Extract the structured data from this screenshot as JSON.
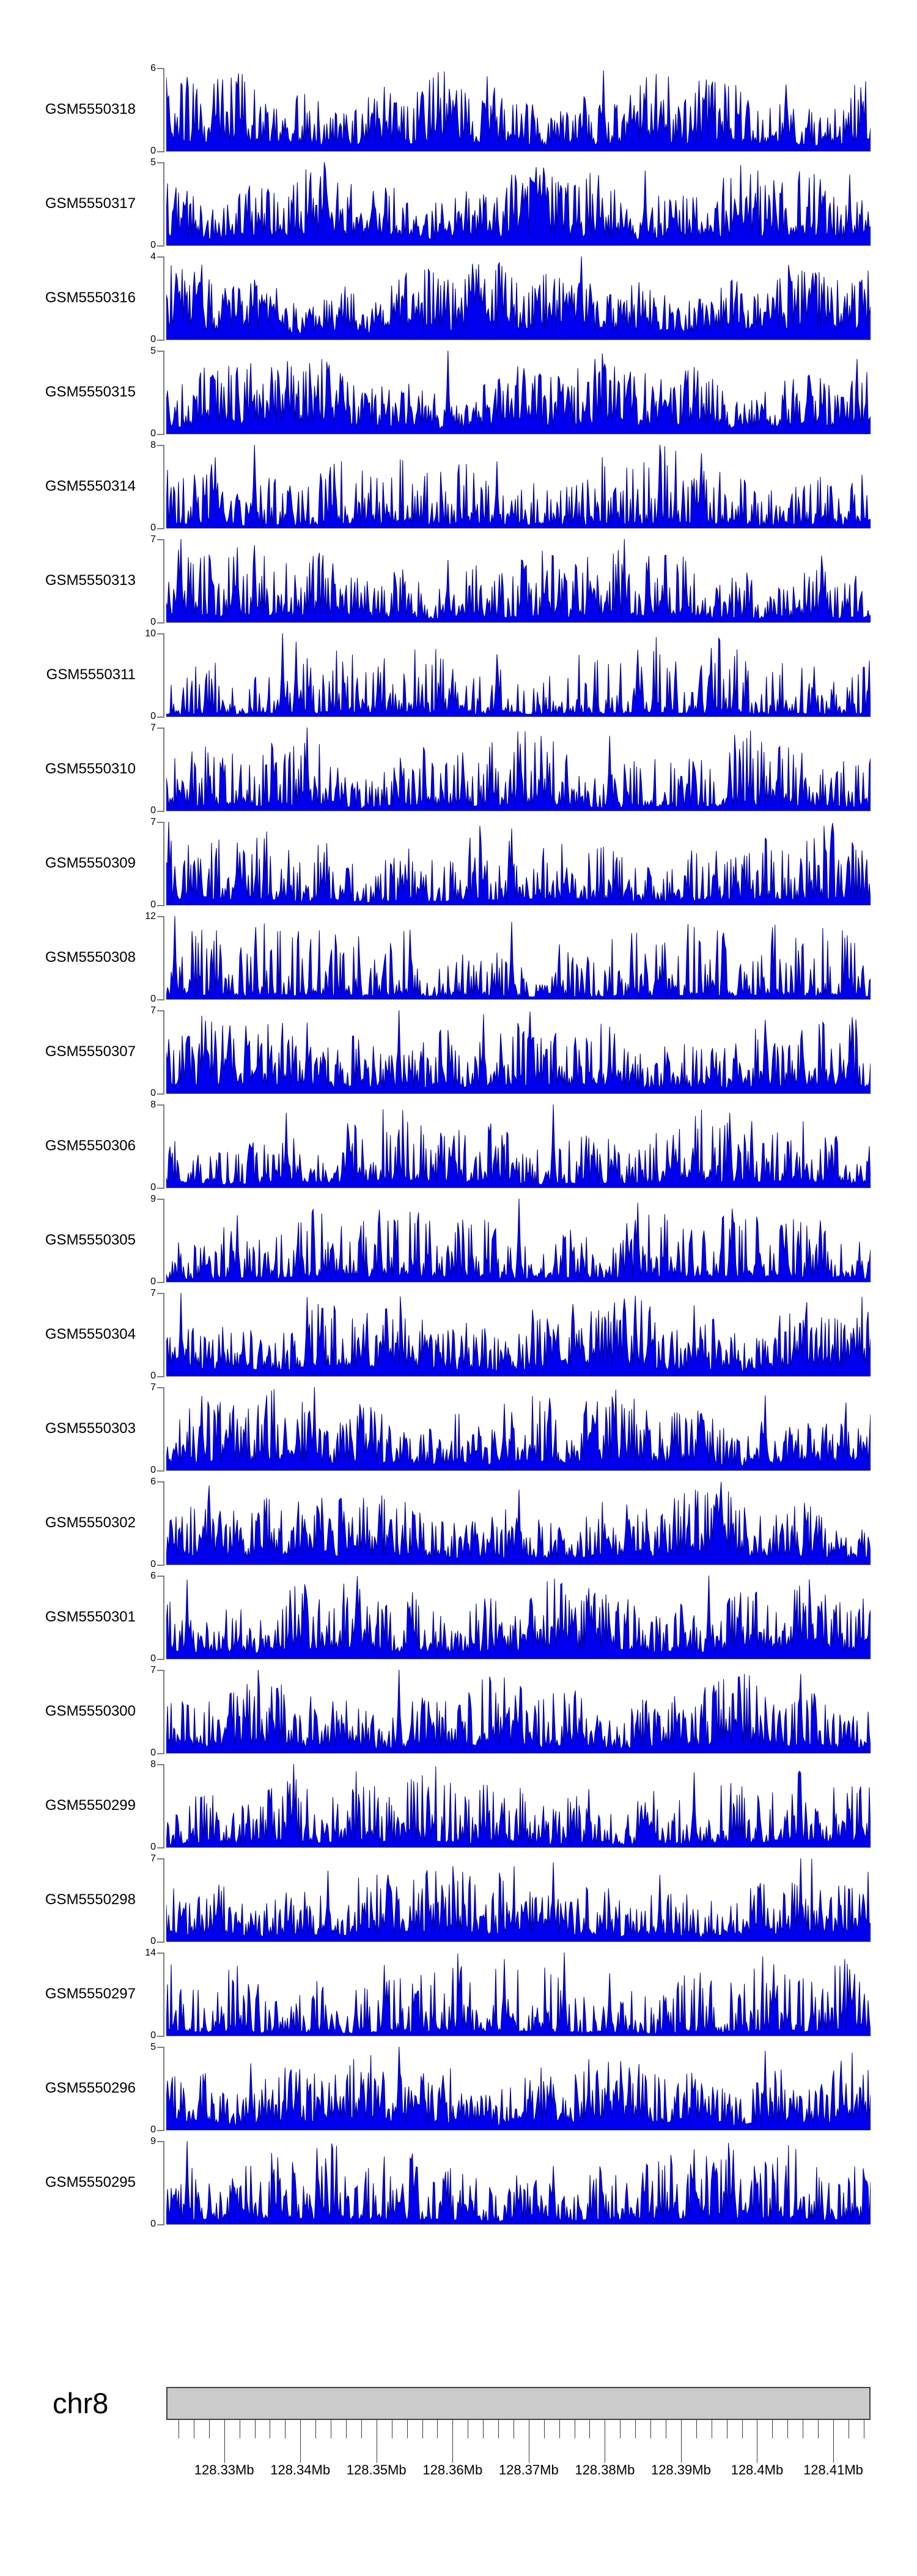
{
  "ruler": {
    "chromosome_label": "chr8"
  },
  "colors": {
    "signal_fill": "#0000EE",
    "signal_edge": "#000080",
    "axis_line": "#7E7E7E",
    "tick_line": "#3C3C3C",
    "ideogram_fill": "#CBCBCB",
    "ideogram_border": "#404040",
    "text": "#000000",
    "background": "#FFFFFF"
  },
  "chart_data": {
    "type": "area",
    "chart_kind": "genome-browser-coverage-tracks",
    "title": "",
    "legend": "none",
    "grid": false,
    "region": {
      "chromosome": "chr8",
      "start_mb": 128.3224,
      "end_mb": 128.4149,
      "unit": "Mb"
    },
    "x_axis": {
      "unit": "Mb",
      "major_ticks": [
        {
          "value_mb": 128.33,
          "label": "128.33Mb"
        },
        {
          "value_mb": 128.34,
          "label": "128.34Mb"
        },
        {
          "value_mb": 128.35,
          "label": "128.35Mb"
        },
        {
          "value_mb": 128.36,
          "label": "128.36Mb"
        },
        {
          "value_mb": 128.37,
          "label": "128.37Mb"
        },
        {
          "value_mb": 128.38,
          "label": "128.38Mb"
        },
        {
          "value_mb": 128.39,
          "label": "128.39Mb"
        },
        {
          "value_mb": 128.4,
          "label": "128.4Mb"
        },
        {
          "value_mb": 128.41,
          "label": "128.41Mb"
        }
      ],
      "minor_ticks": {
        "start_mb": 128.324,
        "step_mb": 0.002,
        "count": 46
      }
    },
    "y_axis_zero_label": "0",
    "series_note": "Each track is a dense noisy read-coverage area plot; y-axis runs 0..ymax. Signal texture is approximated procedurally from the render hints (seed/power/base) plus the prominent peaks read off the screenshot (spikes: [x_fraction, height_fraction_of_ymax]).",
    "samples_per_track": 576,
    "series": [
      {
        "name": "GSM5550318",
        "ymax": 6,
        "render": {
          "seed": 318,
          "power": 1.8,
          "base": 0.12,
          "spikes": [
            [
              0.08,
              0.75
            ],
            [
              0.455,
              0.9
            ],
            [
              0.62,
              0.97
            ],
            [
              0.88,
              0.8
            ]
          ]
        }
      },
      {
        "name": "GSM5550317",
        "ymax": 5,
        "render": {
          "seed": 317,
          "power": 1.7,
          "base": 0.13,
          "spikes": [
            [
              0.225,
              1.0
            ],
            [
              0.49,
              0.85
            ],
            [
              0.68,
              0.9
            ],
            [
              0.97,
              0.85
            ]
          ]
        }
      },
      {
        "name": "GSM5550316",
        "ymax": 4,
        "render": {
          "seed": 316,
          "power": 1.5,
          "base": 0.15,
          "spikes": [
            [
              0.05,
              0.9
            ],
            [
              0.44,
              0.85
            ],
            [
              0.59,
              1.0
            ]
          ]
        }
      },
      {
        "name": "GSM5550315",
        "ymax": 5,
        "render": {
          "seed": 315,
          "power": 1.7,
          "base": 0.13,
          "spikes": [
            [
              0.12,
              0.85
            ],
            [
              0.4,
              1.0
            ],
            [
              0.75,
              0.8
            ],
            [
              0.98,
              0.9
            ]
          ]
        }
      },
      {
        "name": "GSM5550314",
        "ymax": 8,
        "render": {
          "seed": 314,
          "power": 2.6,
          "base": 0.06,
          "spikes": [
            [
              0.07,
              0.85
            ],
            [
              0.125,
              1.0
            ],
            [
              0.47,
              0.8
            ],
            [
              0.7,
              1.0
            ],
            [
              0.76,
              0.9
            ]
          ]
        }
      },
      {
        "name": "GSM5550313",
        "ymax": 7,
        "render": {
          "seed": 313,
          "power": 2.2,
          "base": 0.08,
          "spikes": [
            [
              0.02,
              1.0
            ],
            [
              0.1,
              0.9
            ],
            [
              0.4,
              0.75
            ],
            [
              0.65,
              1.0
            ],
            [
              0.93,
              0.8
            ]
          ]
        }
      },
      {
        "name": "GSM5550311",
        "ymax": 10,
        "render": {
          "seed": 311,
          "power": 3.0,
          "base": 0.05,
          "spikes": [
            [
              0.165,
              1.0
            ],
            [
              0.185,
              0.9
            ],
            [
              0.3,
              0.6
            ],
            [
              0.47,
              0.75
            ],
            [
              0.67,
              0.8
            ],
            [
              0.92,
              0.6
            ]
          ]
        }
      },
      {
        "name": "GSM5550310",
        "ymax": 7,
        "render": {
          "seed": 310,
          "power": 2.4,
          "base": 0.07,
          "spikes": [
            [
              0.2,
              1.0
            ],
            [
              0.42,
              0.7
            ],
            [
              0.63,
              0.9
            ],
            [
              0.8,
              0.7
            ]
          ]
        }
      },
      {
        "name": "GSM5550309",
        "ymax": 7,
        "render": {
          "seed": 309,
          "power": 2.4,
          "base": 0.07,
          "spikes": [
            [
              0.004,
              1.0
            ],
            [
              0.1,
              0.75
            ],
            [
              0.49,
              0.92
            ],
            [
              0.78,
              0.65
            ]
          ]
        }
      },
      {
        "name": "GSM5550308",
        "ymax": 12,
        "render": {
          "seed": 308,
          "power": 3.2,
          "base": 0.05,
          "spikes": [
            [
              0.012,
              1.0
            ],
            [
              0.31,
              0.45
            ],
            [
              0.49,
              0.93
            ],
            [
              0.7,
              0.4
            ]
          ]
        }
      },
      {
        "name": "GSM5550307",
        "ymax": 7,
        "render": {
          "seed": 307,
          "power": 2.0,
          "base": 0.1,
          "spikes": [
            [
              0.2,
              0.85
            ],
            [
              0.33,
              1.0
            ],
            [
              0.45,
              0.95
            ],
            [
              0.63,
              0.8
            ],
            [
              0.97,
              0.75
            ]
          ]
        }
      },
      {
        "name": "GSM5550306",
        "ymax": 8,
        "render": {
          "seed": 306,
          "power": 2.3,
          "base": 0.08,
          "spikes": [
            [
              0.17,
              0.9
            ],
            [
              0.33,
              0.7
            ],
            [
              0.55,
              1.0
            ],
            [
              0.8,
              0.9
            ]
          ]
        }
      },
      {
        "name": "GSM5550305",
        "ymax": 9,
        "render": {
          "seed": 305,
          "power": 2.5,
          "base": 0.07,
          "spikes": [
            [
              0.1,
              0.8
            ],
            [
              0.5,
              1.0
            ],
            [
              0.67,
              0.95
            ],
            [
              0.88,
              0.7
            ]
          ]
        }
      },
      {
        "name": "GSM5550304",
        "ymax": 7,
        "render": {
          "seed": 304,
          "power": 1.8,
          "base": 0.12,
          "spikes": [
            [
              0.02,
              1.0
            ],
            [
              0.2,
              0.95
            ],
            [
              0.52,
              0.8
            ],
            [
              0.75,
              0.85
            ]
          ]
        }
      },
      {
        "name": "GSM5550303",
        "ymax": 7,
        "render": {
          "seed": 303,
          "power": 1.9,
          "base": 0.11,
          "spikes": [
            [
              0.21,
              1.0
            ],
            [
              0.48,
              0.8
            ],
            [
              0.65,
              0.75
            ],
            [
              0.85,
              0.9
            ]
          ]
        }
      },
      {
        "name": "GSM5550302",
        "ymax": 6,
        "render": {
          "seed": 302,
          "power": 1.8,
          "base": 0.12,
          "spikes": [
            [
              0.06,
              0.95
            ],
            [
              0.28,
              0.8
            ],
            [
              0.5,
              0.9
            ],
            [
              0.78,
              0.85
            ]
          ]
        }
      },
      {
        "name": "GSM5550301",
        "ymax": 6,
        "render": {
          "seed": 301,
          "power": 1.8,
          "base": 0.12,
          "spikes": [
            [
              0.03,
              0.95
            ],
            [
              0.35,
              0.8
            ],
            [
              0.6,
              0.85
            ],
            [
              0.77,
              1.0
            ]
          ]
        }
      },
      {
        "name": "GSM5550300",
        "ymax": 7,
        "render": {
          "seed": 300,
          "power": 2.0,
          "base": 0.1,
          "spikes": [
            [
              0.15,
              0.8
            ],
            [
              0.33,
              1.0
            ],
            [
              0.58,
              0.75
            ],
            [
              0.9,
              0.95
            ]
          ]
        }
      },
      {
        "name": "GSM5550299",
        "ymax": 8,
        "render": {
          "seed": 299,
          "power": 2.4,
          "base": 0.07,
          "spikes": [
            [
              0.18,
              1.0
            ],
            [
              0.45,
              0.75
            ],
            [
              0.6,
              0.7
            ],
            [
              0.75,
              0.9
            ]
          ]
        }
      },
      {
        "name": "GSM5550298",
        "ymax": 7,
        "render": {
          "seed": 298,
          "power": 1.9,
          "base": 0.11,
          "spikes": [
            [
              0.23,
              0.85
            ],
            [
              0.55,
              0.95
            ],
            [
              0.7,
              0.8
            ],
            [
              0.9,
              1.0
            ]
          ]
        }
      },
      {
        "name": "GSM5550297",
        "ymax": 14,
        "render": {
          "seed": 297,
          "power": 3.0,
          "base": 0.06,
          "spikes": [
            [
              0.27,
              0.55
            ],
            [
              0.31,
              0.85
            ],
            [
              0.48,
              0.92
            ],
            [
              0.565,
              1.0
            ],
            [
              0.63,
              0.75
            ],
            [
              0.97,
              0.8
            ]
          ]
        }
      },
      {
        "name": "GSM5550296",
        "ymax": 5,
        "render": {
          "seed": 296,
          "power": 1.8,
          "base": 0.12,
          "spikes": [
            [
              0.12,
              0.8
            ],
            [
              0.33,
              1.0
            ],
            [
              0.6,
              0.85
            ],
            [
              0.85,
              0.95
            ]
          ]
        }
      },
      {
        "name": "GSM5550295",
        "ymax": 9,
        "render": {
          "seed": 295,
          "power": 2.5,
          "base": 0.07,
          "spikes": [
            [
              0.03,
              1.0
            ],
            [
              0.35,
              0.85
            ],
            [
              0.55,
              0.7
            ],
            [
              0.75,
              0.9
            ]
          ]
        }
      }
    ]
  }
}
